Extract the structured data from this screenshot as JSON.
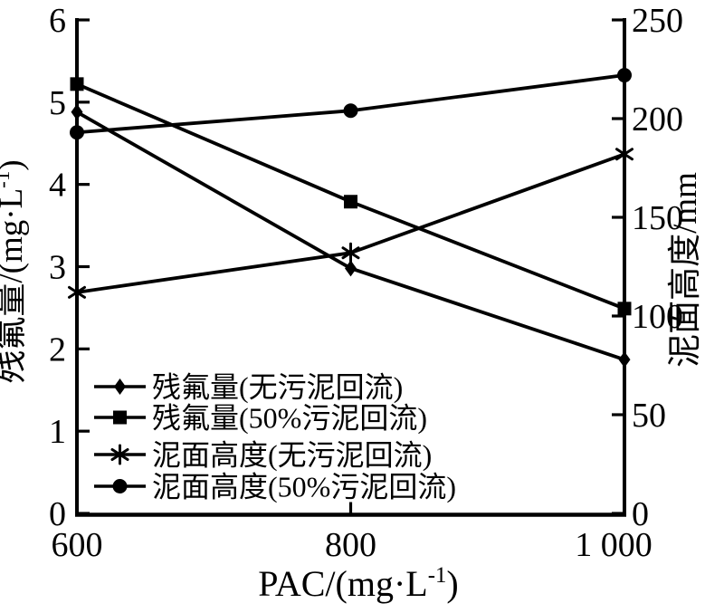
{
  "figure": {
    "background": "#ffffff",
    "ink": "#000000"
  },
  "chart_data": {
    "type": "line",
    "x": [
      600,
      800,
      1000
    ],
    "x_tick_labels": [
      "600",
      "800",
      "1 000"
    ],
    "x_axis": {
      "title_prefix": "PAC/(mg·L",
      "title_sup": "-1",
      "title_suffix": ")",
      "min": 600,
      "max": 1000
    },
    "left_axis": {
      "title_prefix": "残氟量/(mg·L",
      "title_sup": "-1",
      "title_suffix": ")",
      "min": 0,
      "max": 6,
      "tick_labels": [
        "0",
        "1",
        "2",
        "3",
        "4",
        "5",
        "6"
      ]
    },
    "right_axis": {
      "title_prefix": "泥面高度/mm",
      "title_sup": "",
      "title_suffix": "",
      "min": 0,
      "max": 250,
      "tick_labels": [
        "0",
        "50",
        "100",
        "150",
        "200",
        "250"
      ]
    },
    "series": [
      {
        "name": "残氟量(无污泥回流)",
        "marker": "diamond",
        "axis": "left",
        "values": [
          4.88,
          2.98,
          1.87
        ]
      },
      {
        "name": "残氟量(50%污泥回流)",
        "marker": "square",
        "axis": "left",
        "values": [
          5.22,
          3.79,
          2.49
        ]
      },
      {
        "name": "泥面高度(无污泥回流)",
        "marker": "asterisk",
        "axis": "right",
        "values": [
          112,
          132,
          182
        ]
      },
      {
        "name": "泥面高度(50%污泥回流)",
        "marker": "circle",
        "axis": "right",
        "values": [
          193,
          204,
          222
        ]
      }
    ],
    "legend": {
      "position": "inside-lower-left",
      "items": [
        "残氟量(无污泥回流)",
        "残氟量(50%污泥回流)",
        "泥面高度(无污泥回流)",
        "泥面高度(50%污泥回流)"
      ]
    },
    "grid": false
  }
}
